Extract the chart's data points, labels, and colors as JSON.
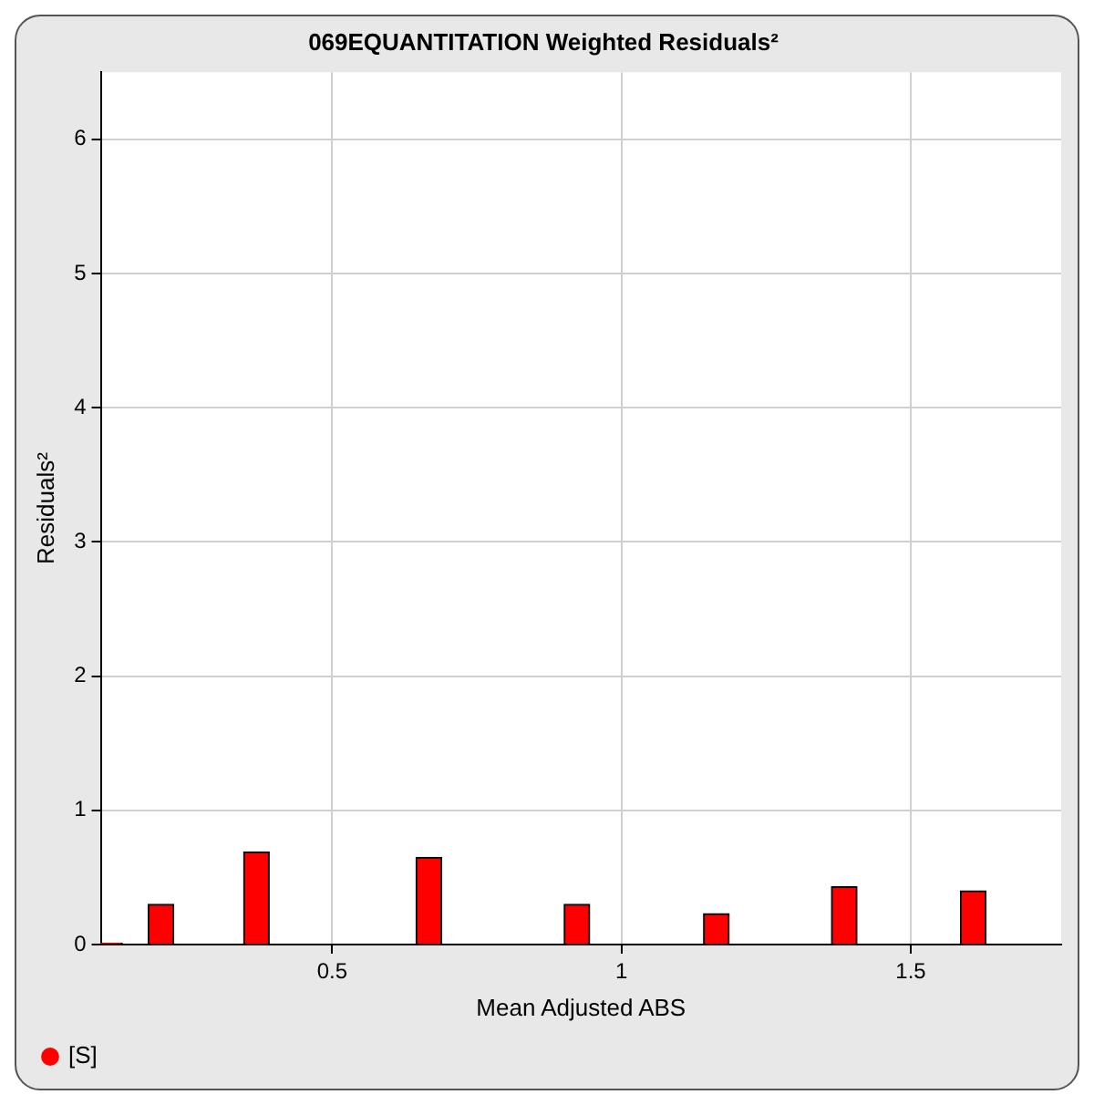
{
  "chart_data": {
    "type": "bar",
    "title": "069EQUANTITATION Weighted Residuals²",
    "xlabel": "Mean Adjusted ABS",
    "ylabel": "Residuals²",
    "x": [
      0.115,
      0.204,
      0.369,
      0.667,
      0.923,
      1.164,
      1.385,
      1.608
    ],
    "series": [
      {
        "name": "[S]",
        "color": "#ff0000",
        "values": [
          0.01,
          0.3,
          0.69,
          0.65,
          0.3,
          0.23,
          0.43,
          0.4
        ]
      }
    ],
    "xlim": [
      0.1,
      1.76
    ],
    "xticks": [
      0.5,
      1,
      1.5
    ],
    "ylim": [
      0,
      6.5
    ],
    "yticks": [
      0,
      1,
      2,
      3,
      4,
      5,
      6
    ],
    "grid": true,
    "legend": "bottom left"
  }
}
